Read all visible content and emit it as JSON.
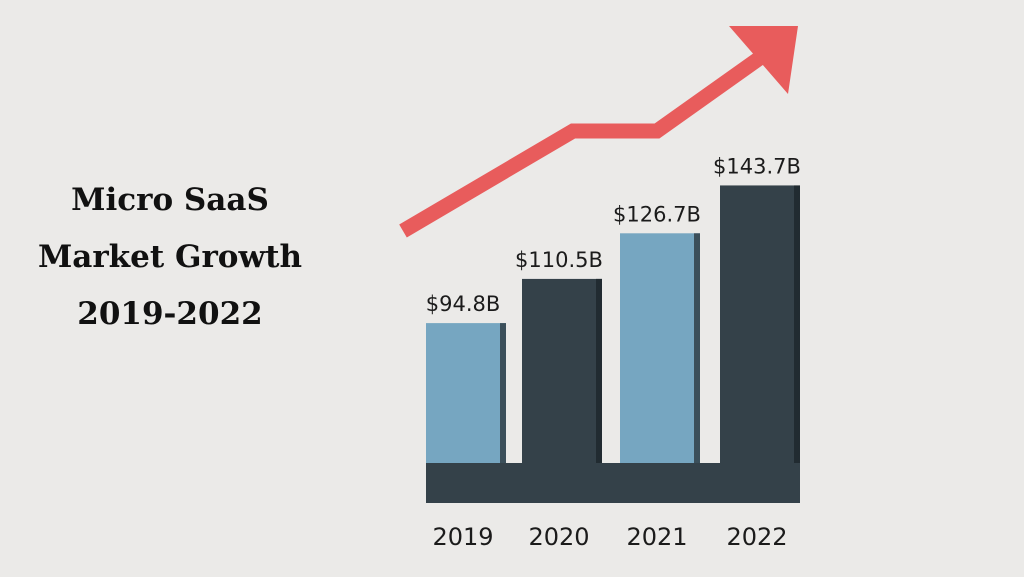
{
  "colors": {
    "background": "#ebeae8",
    "bar_light": "#76a6c1",
    "bar_light_shadow": "#3b4f5a",
    "bar_dark": "#344149",
    "bar_dark_shadow": "#212b31",
    "base": "#344149",
    "arrow": "#e85c5c",
    "text": "#1b1b1b"
  },
  "chart_data": {
    "type": "bar",
    "title": [
      "Micro SaaS",
      "Market Growth",
      "2019-2022"
    ],
    "categories": [
      "2019",
      "2020",
      "2021",
      "2022"
    ],
    "values": [
      94.8,
      110.5,
      126.7,
      143.7
    ],
    "value_labels": [
      "$94.8B",
      "$110.5B",
      "$126.7B",
      "$143.7B"
    ],
    "bar_styles": [
      "light",
      "dark",
      "light",
      "dark"
    ],
    "unit": "Billion USD",
    "xlabel": "",
    "ylabel": "",
    "ylim": [
      0,
      150
    ],
    "grid": false,
    "legend": "none",
    "annotation": "upward trend arrow"
  }
}
